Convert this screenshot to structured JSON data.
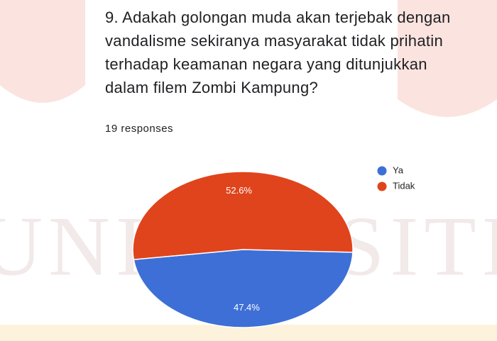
{
  "chart_data": {
    "type": "pie",
    "title": "9. Adakah golongan muda akan terjebak dengan vandalisme sekiranya masyarakat tidak prihatin terhadap keamanan negara yang ditunjukkan dalam filem Zombi Kampung?",
    "subtitle": "19 responses",
    "watermark": "UNIVERSITI",
    "categories": [
      "Ya",
      "Tidak"
    ],
    "values": [
      47.4,
      52.6
    ],
    "value_labels": [
      "47.4%",
      "52.6%"
    ],
    "colors": [
      "#3d6fd6",
      "#e0441c"
    ],
    "legend": "top-right"
  }
}
